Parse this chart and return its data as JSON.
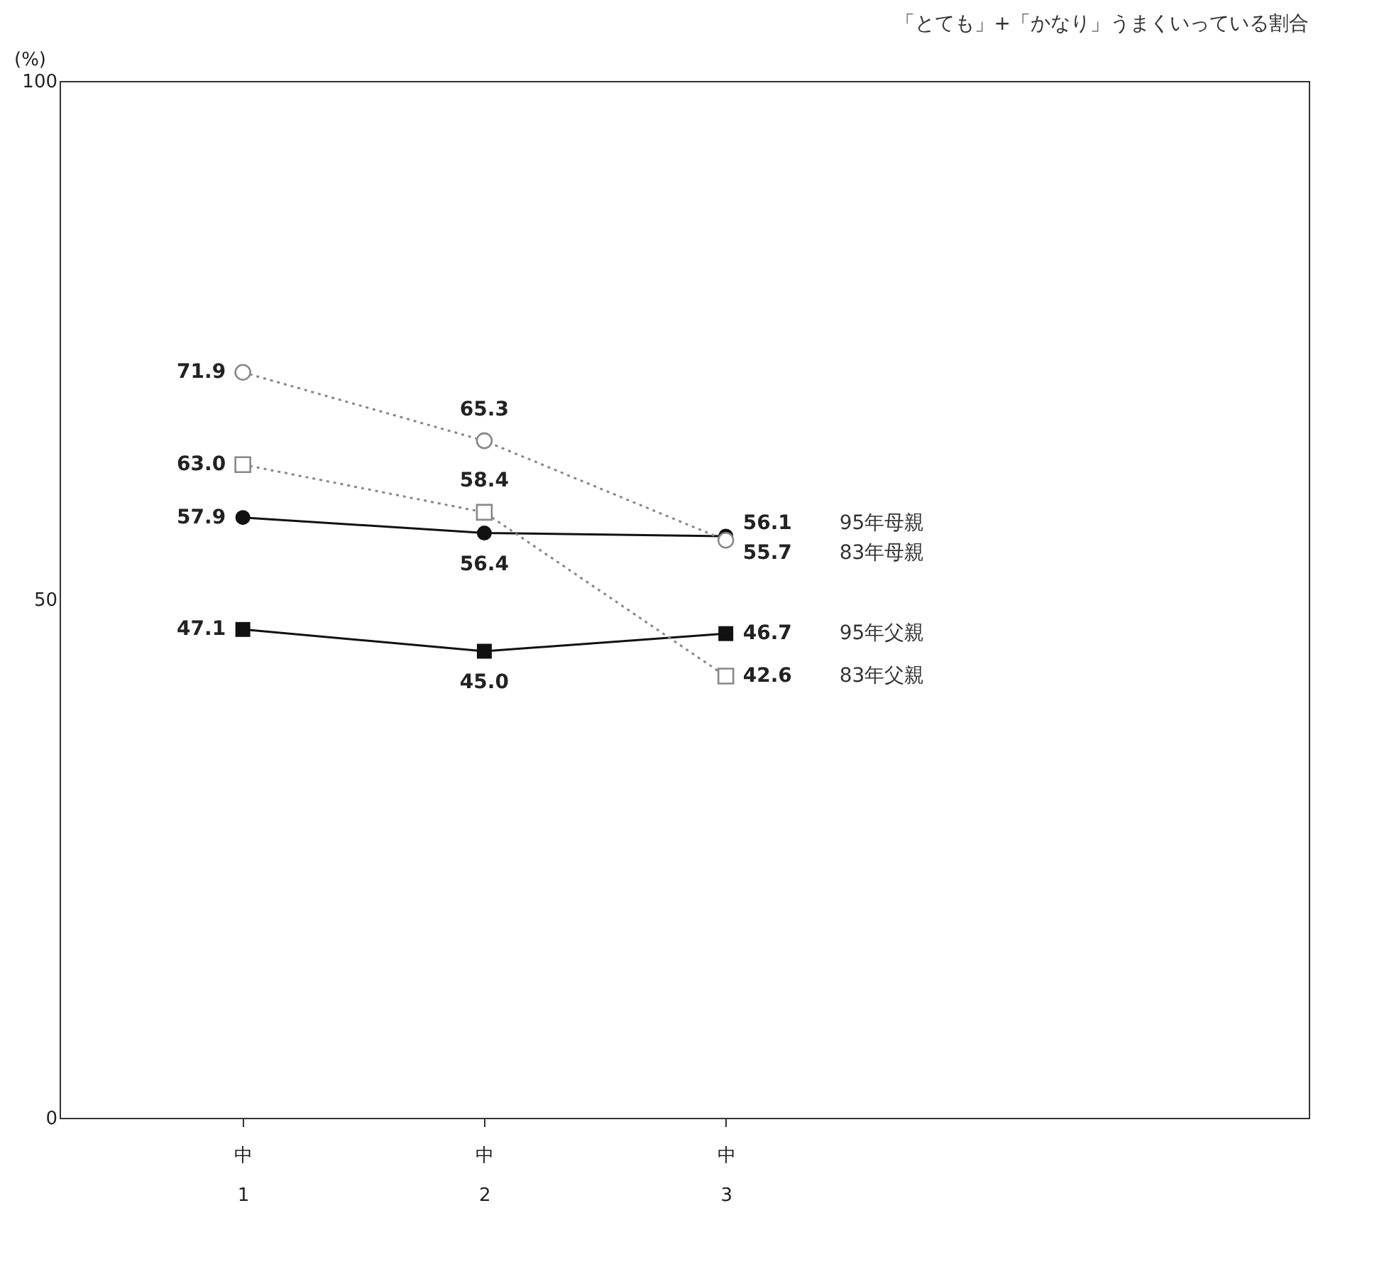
{
  "chart_data": {
    "type": "line",
    "title": "「とても」+「かなり」うまくいっている割合",
    "ylabel": "(%)",
    "categories": [
      "中\n1",
      "中\n2",
      "中\n3"
    ],
    "series": [
      {
        "name": "95年母親",
        "color": "#111111",
        "values": [
          57.9,
          56.4,
          56.1
        ],
        "value_labels": [
          "57.9",
          "56.4",
          "56.1"
        ],
        "marker": "circle",
        "line_style": "solid"
      },
      {
        "name": "83年母親",
        "color": "#888888",
        "values": [
          71.9,
          65.3,
          55.7
        ],
        "value_labels": [
          "71.9",
          "65.3",
          "55.7"
        ],
        "marker": "circle",
        "line_style": "dotted"
      },
      {
        "name": "95年父親",
        "color": "#111111",
        "values": [
          47.1,
          45.0,
          46.7
        ],
        "value_labels": [
          "47.1",
          "45.0",
          "46.7"
        ],
        "marker": "square",
        "line_style": "solid"
      },
      {
        "name": "83年父親",
        "color": "#888888",
        "values": [
          63.0,
          58.4,
          42.6
        ],
        "value_labels": [
          "63.0",
          "58.4",
          "42.6"
        ],
        "marker": "square",
        "line_style": "dotted"
      }
    ],
    "ylim": [
      0,
      100
    ],
    "yticks": [
      0,
      50,
      100
    ],
    "grid": false,
    "legend": false
  }
}
